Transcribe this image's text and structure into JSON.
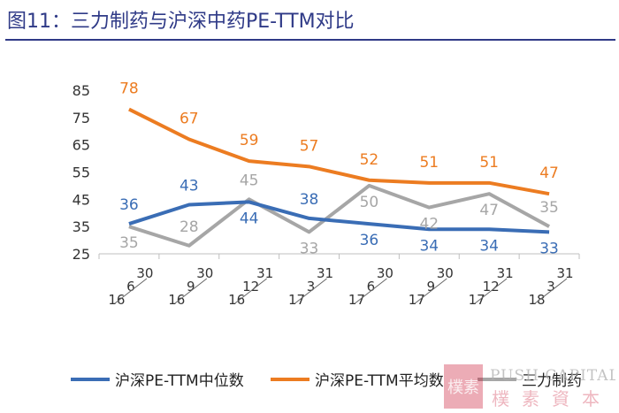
{
  "title": "图11：三力制药与沪深中药PE-TTM对比",
  "chart_data": {
    "type": "line",
    "ylim": [
      25,
      85
    ],
    "yticks": [
      25,
      35,
      45,
      55,
      65,
      75,
      85
    ],
    "categories": [
      {
        "day": "30",
        "month": "6",
        "year": "16"
      },
      {
        "day": "30",
        "month": "9",
        "year": "16"
      },
      {
        "day": "31",
        "month": "12",
        "year": "16"
      },
      {
        "day": "31",
        "month": "3",
        "year": "17"
      },
      {
        "day": "30",
        "month": "6",
        "year": "17"
      },
      {
        "day": "30",
        "month": "9",
        "year": "17"
      },
      {
        "day": "31",
        "month": "12",
        "year": "17"
      },
      {
        "day": "31",
        "month": "3",
        "year": "18"
      }
    ],
    "series": [
      {
        "name": "沪深PE-TTM中位数",
        "color": "#3a6db5",
        "label_pos": "auto",
        "values": [
          36,
          43,
          44,
          38,
          36,
          34,
          34,
          33
        ],
        "label_offsets": [
          -16,
          -16,
          16,
          -16,
          16,
          16,
          16,
          16
        ]
      },
      {
        "name": "沪深PE-TTM平均数",
        "color": "#ec7c21",
        "values": [
          78,
          67,
          59,
          57,
          52,
          51,
          51,
          47
        ],
        "label_offsets": [
          -18,
          -18,
          -18,
          -18,
          -18,
          -18,
          -18,
          -18
        ]
      },
      {
        "name": "三力制药",
        "color": "#a6a6a6",
        "values": [
          35,
          28,
          45,
          33,
          50,
          42,
          47,
          35
        ],
        "label_offsets": [
          16,
          -16,
          -16,
          16,
          16,
          16,
          16,
          -16
        ]
      }
    ],
    "legend_position": "bottom",
    "grid": false
  },
  "watermark": {
    "brand_en": "PUSH CAPITAL",
    "seal_text": "樸素",
    "brand_cn": "樸素資本"
  }
}
